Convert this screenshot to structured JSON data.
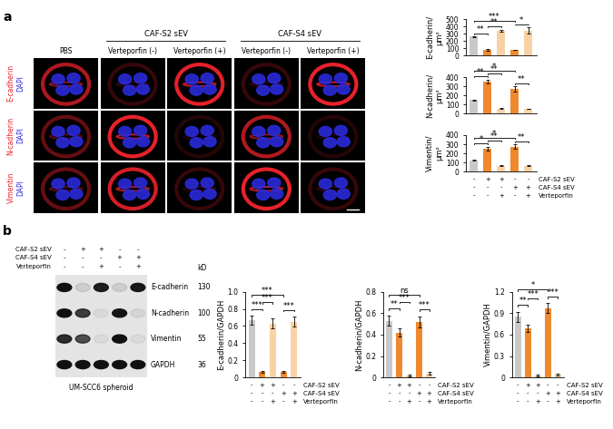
{
  "panel_labels": [
    "a",
    "b"
  ],
  "images": {
    "columns": [
      {
        "label": "PBS"
      },
      {
        "group": "CAF-S2 sEV",
        "labels": [
          "Verteporfin (-)",
          "Verteporfin (+)"
        ]
      },
      {
        "group": "CAF-S4 sEV",
        "labels": [
          "Verteporfin (-)",
          "Verteporfin (+)"
        ]
      }
    ],
    "rows": [
      {
        "stain": "E-cadherin",
        "counterstain": "DAPI"
      },
      {
        "stain": "N-cadherin",
        "counterstain": "DAPI"
      },
      {
        "stain": "Vimentin",
        "counterstain": "DAPI"
      }
    ]
  },
  "blot": {
    "title": "UM-SCC6 spheroid",
    "unit": "kD",
    "conditions": [
      {
        "name": "CAF-S2 sEV",
        "signs": [
          "-",
          "+",
          "+",
          "-",
          "-"
        ]
      },
      {
        "name": "CAF-S4 sEV",
        "signs": [
          "-",
          "-",
          "-",
          "+",
          "+"
        ]
      },
      {
        "name": "Verteporfin",
        "signs": [
          "-",
          "-",
          "+",
          "-",
          "+"
        ]
      }
    ],
    "bands": [
      {
        "name": "E-cadherin",
        "kd": 130
      },
      {
        "name": "N-cadherin",
        "kd": 100
      },
      {
        "name": "Vimentin",
        "kd": 55
      },
      {
        "name": "GAPDH",
        "kd": 36
      }
    ]
  },
  "chart_data": [
    {
      "type": "bar",
      "y_label": "E-cadherin/\nµm²",
      "categories": [
        null,
        null,
        null,
        null,
        null
      ],
      "values": [
        262,
        80,
        345,
        80,
        348
      ],
      "errors": [
        5,
        15,
        15,
        5,
        45
      ],
      "colors": [
        "#c9c9c9",
        "#f0892e",
        "#f8d2a5",
        "#f0892e",
        "#f8d2a5"
      ],
      "ylim": [
        0,
        500
      ],
      "yticks": [
        0,
        100,
        200,
        300,
        400,
        500
      ],
      "comparisons": [
        {
          "from": 0,
          "to": 1,
          "label": "**"
        },
        {
          "from": 0,
          "to": 3,
          "label": "***"
        },
        {
          "from": 1,
          "to": 2,
          "label": "**"
        },
        {
          "from": 3,
          "to": 4,
          "label": "*"
        }
      ]
    },
    {
      "type": "bar",
      "y_label": "N-cadherin/\nµm²",
      "categories": [
        null,
        null,
        null,
        null,
        null
      ],
      "values": [
        152,
        355,
        55,
        272,
        55
      ],
      "errors": [
        5,
        20,
        5,
        30,
        3
      ],
      "colors": [
        "#c9c9c9",
        "#f0892e",
        "#f8d2a5",
        "#f0892e",
        "#f8d2a5"
      ],
      "ylim": [
        0,
        400
      ],
      "yticks": [
        0,
        100,
        200,
        300,
        400
      ],
      "comparisons": [
        {
          "from": 0,
          "to": 1,
          "label": "**"
        },
        {
          "from": 0,
          "to": 3,
          "label": "*"
        },
        {
          "from": 1,
          "to": 2,
          "label": "**"
        },
        {
          "from": 3,
          "to": 4,
          "label": "**"
        }
      ]
    },
    {
      "type": "bar",
      "y_label": "Vimentin/\nµm²",
      "categories": [
        null,
        null,
        null,
        null,
        null
      ],
      "values": [
        122,
        255,
        65,
        275,
        65
      ],
      "errors": [
        5,
        20,
        5,
        25,
        3
      ],
      "colors": [
        "#c9c9c9",
        "#f0892e",
        "#f8d2a5",
        "#f0892e",
        "#f8d2a5"
      ],
      "ylim": [
        0,
        400
      ],
      "yticks": [
        0,
        100,
        200,
        300,
        400
      ],
      "comparisons": [
        {
          "from": 0,
          "to": 1,
          "label": "*"
        },
        {
          "from": 0,
          "to": 3,
          "label": "*"
        },
        {
          "from": 1,
          "to": 2,
          "label": "**"
        },
        {
          "from": 3,
          "to": 4,
          "label": "**"
        }
      ],
      "conditions": [
        {
          "name": "CAF-S2 sEV",
          "signs": [
            "-",
            "+",
            "+",
            "-",
            "-"
          ]
        },
        {
          "name": "CAF-S4 sEV",
          "signs": [
            "-",
            "-",
            "-",
            "+",
            "+"
          ]
        },
        {
          "name": "Verteporfin",
          "signs": [
            "-",
            "-",
            "+",
            "-",
            "+"
          ]
        }
      ]
    },
    {
      "type": "bar",
      "y_label": "E-cadherin/GAPDH",
      "categories": [
        null,
        null,
        null,
        null,
        null
      ],
      "values": [
        0.67,
        0.07,
        0.63,
        0.07,
        0.65
      ],
      "errors": [
        0.05,
        0.01,
        0.06,
        0.01,
        0.06
      ],
      "colors": [
        "#c9c9c9",
        "#f0892e",
        "#f8d2a5",
        "#f0892e",
        "#f8d2a5"
      ],
      "ylim": [
        0,
        1.0
      ],
      "yticks": [
        0,
        0.2,
        0.4,
        0.6,
        0.8,
        1.0
      ],
      "comparisons": [
        {
          "from": 0,
          "to": 1,
          "label": "***"
        },
        {
          "from": 0,
          "to": 3,
          "label": "***"
        },
        {
          "from": 1,
          "to": 2,
          "label": "***"
        },
        {
          "from": 3,
          "to": 4,
          "label": "***"
        }
      ],
      "conditions": [
        {
          "name": "CAF-S2 sEV",
          "signs": [
            "-",
            "+",
            "+",
            "-",
            "-"
          ]
        },
        {
          "name": "CAF-S4 sEV",
          "signs": [
            "-",
            "-",
            "-",
            "+",
            "+"
          ]
        },
        {
          "name": "Verteporfin",
          "signs": [
            "-",
            "-",
            "+",
            "-",
            "+"
          ]
        }
      ]
    },
    {
      "type": "bar",
      "y_label": "N-cadherin/GAPDH",
      "categories": [
        null,
        null,
        null,
        null,
        null
      ],
      "values": [
        0.53,
        0.42,
        0.02,
        0.52,
        0.04
      ],
      "errors": [
        0.05,
        0.04,
        0.01,
        0.05,
        0.01
      ],
      "colors": [
        "#c9c9c9",
        "#f0892e",
        "#f8d2a5",
        "#f0892e",
        "#f8d2a5"
      ],
      "ylim": [
        0,
        0.8
      ],
      "yticks": [
        0,
        0.2,
        0.4,
        0.6,
        0.8
      ],
      "comparisons": [
        {
          "from": 0,
          "to": 1,
          "label": "**"
        },
        {
          "from": 0,
          "to": 3,
          "label": "ns"
        },
        {
          "from": 1,
          "to": 2,
          "label": "***"
        },
        {
          "from": 3,
          "to": 4,
          "label": "***"
        }
      ],
      "conditions": [
        {
          "name": "CAF-S2 sEV",
          "signs": [
            "-",
            "+",
            "+",
            "-",
            "-"
          ]
        },
        {
          "name": "CAF-S4 sEV",
          "signs": [
            "-",
            "-",
            "-",
            "+",
            "+"
          ]
        },
        {
          "name": "Verteporfin",
          "signs": [
            "-",
            "-",
            "+",
            "-",
            "+"
          ]
        }
      ]
    },
    {
      "type": "bar",
      "y_label": "Vimentin/GAPDH",
      "categories": [
        null,
        null,
        null,
        null,
        null
      ],
      "values": [
        0.85,
        0.69,
        0.03,
        0.97,
        0.04
      ],
      "errors": [
        0.07,
        0.05,
        0.01,
        0.07,
        0.01
      ],
      "colors": [
        "#c9c9c9",
        "#f0892e",
        "#f8d2a5",
        "#f0892e",
        "#f8d2a5"
      ],
      "ylim": [
        0,
        1.2
      ],
      "yticks": [
        0,
        0.3,
        0.6,
        0.9,
        1.2
      ],
      "comparisons": [
        {
          "from": 0,
          "to": 1,
          "label": "**"
        },
        {
          "from": 0,
          "to": 3,
          "label": "*"
        },
        {
          "from": 1,
          "to": 2,
          "label": "***"
        },
        {
          "from": 3,
          "to": 4,
          "label": "***"
        }
      ],
      "conditions": [
        {
          "name": "CAF-S2 sEV",
          "signs": [
            "-",
            "+",
            "+",
            "-",
            "-"
          ]
        },
        {
          "name": "CAF-S4 sEV",
          "signs": [
            "-",
            "-",
            "-",
            "+",
            "+"
          ]
        },
        {
          "name": "Verteporfin",
          "signs": [
            "-",
            "-",
            "+",
            "-",
            "+"
          ]
        }
      ]
    }
  ]
}
